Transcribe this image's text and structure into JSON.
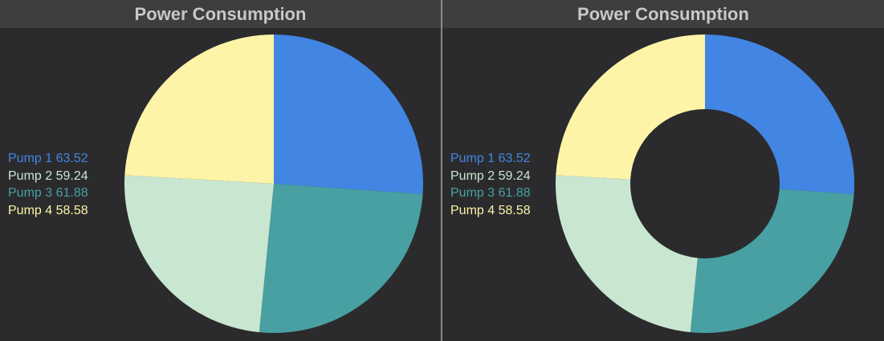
{
  "colors": {
    "background": "#2b2b2d",
    "header": "#3e3e40",
    "title": "#c8c8c8",
    "divider": "#8a8a8a"
  },
  "panels": [
    {
      "title": "Power Consumption"
    },
    {
      "title": "Power Consumption"
    }
  ],
  "chart_data": [
    {
      "type": "pie",
      "title": "Power Consumption",
      "series": [
        {
          "name": "Pump 1",
          "value": 63.52,
          "display": "63.52",
          "color": "#4285e3"
        },
        {
          "name": "Pump 2",
          "value": 59.24,
          "display": "59.24",
          "color": "#c9e6d1"
        },
        {
          "name": "Pump 3",
          "value": 61.88,
          "display": "61.88",
          "color": "#48a0a2"
        },
        {
          "name": "Pump 4",
          "value": 58.58,
          "display": "58.58",
          "color": "#fdf4a8"
        }
      ],
      "slice_order": [
        "Pump 1",
        "Pump 3",
        "Pump 2",
        "Pump 4"
      ],
      "legend_position": "left"
    },
    {
      "type": "donut",
      "title": "Power Consumption",
      "series": [
        {
          "name": "Pump 1",
          "value": 63.52,
          "display": "63.52",
          "color": "#4285e3"
        },
        {
          "name": "Pump 2",
          "value": 59.24,
          "display": "59.24",
          "color": "#c9e6d1"
        },
        {
          "name": "Pump 3",
          "value": 61.88,
          "display": "61.88",
          "color": "#48a0a2"
        },
        {
          "name": "Pump 4",
          "value": 58.58,
          "display": "58.58",
          "color": "#fdf4a8"
        }
      ],
      "slice_order": [
        "Pump 1",
        "Pump 3",
        "Pump 2",
        "Pump 4"
      ],
      "legend_position": "left"
    }
  ]
}
